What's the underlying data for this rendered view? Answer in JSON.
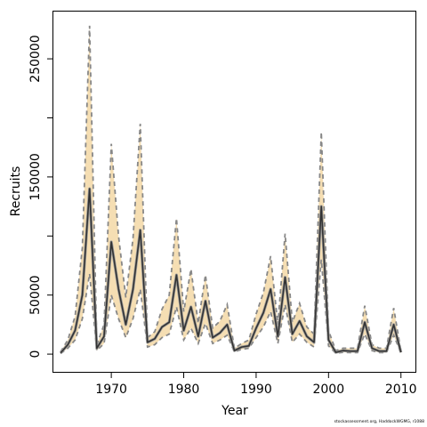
{
  "chart_data": {
    "type": "line",
    "title": "",
    "xlabel": "Year",
    "ylabel": "Recruits",
    "xlim": [
      1962,
      2012
    ],
    "ylim": [
      -15000,
      290000
    ],
    "x_ticks": [
      1970,
      1980,
      1990,
      2000,
      2010
    ],
    "y_ticks": [
      0,
      50000,
      100000,
      150000,
      200000,
      250000
    ],
    "y_tick_labels": [
      "0",
      "50000",
      "",
      "150000",
      "",
      "250000"
    ],
    "band_color": "#f5deb3",
    "line_color": "#333333",
    "bound_color": "#888888",
    "grid": false,
    "x": [
      1963,
      1964,
      1965,
      1966,
      1967,
      1968,
      1969,
      1970,
      1971,
      1972,
      1973,
      1974,
      1975,
      1976,
      1977,
      1978,
      1979,
      1980,
      1981,
      1982,
      1983,
      1984,
      1985,
      1986,
      1987,
      1988,
      1989,
      1990,
      1991,
      1992,
      1993,
      1994,
      1995,
      1996,
      1997,
      1998,
      1999,
      2000,
      2001,
      2002,
      2003,
      2004,
      2005,
      2006,
      2007,
      2008,
      2009,
      2010
    ],
    "series": [
      {
        "role": "estimate",
        "values": [
          1000,
          8000,
          20000,
          50000,
          140000,
          5000,
          15000,
          95000,
          55000,
          25000,
          55000,
          105000,
          10000,
          13000,
          23000,
          27000,
          67000,
          20000,
          40000,
          15000,
          45000,
          14000,
          18000,
          25000,
          3000,
          6000,
          7000,
          22000,
          35000,
          55000,
          15000,
          65000,
          17000,
          28000,
          15000,
          10000,
          125000,
          12000,
          1500,
          3000,
          2500,
          2500,
          27000,
          5000,
          2500,
          2500,
          25000,
          1500
        ]
      },
      {
        "role": "upper",
        "values": [
          2000,
          12000,
          32000,
          90000,
          278000,
          8000,
          25000,
          178000,
          100000,
          48000,
          98000,
          195000,
          14000,
          19000,
          38000,
          50000,
          115000,
          36000,
          72000,
          26000,
          67000,
          22000,
          28000,
          42000,
          5000,
          9000,
          12000,
          34000,
          52000,
          83000,
          25000,
          102000,
          27000,
          43000,
          23000,
          17000,
          188000,
          20000,
          3000,
          5000,
          5000,
          5000,
          41000,
          8000,
          5000,
          5000,
          39000,
          2500
        ]
      },
      {
        "role": "lower",
        "values": [
          500,
          5000,
          12000,
          30000,
          68000,
          3000,
          9000,
          50000,
          30000,
          14000,
          30000,
          55000,
          6000,
          8000,
          14000,
          17000,
          40000,
          12000,
          22000,
          9000,
          26000,
          9000,
          12000,
          16000,
          2000,
          4000,
          5000,
          14000,
          23000,
          36000,
          9000,
          42000,
          10000,
          17000,
          10000,
          6000,
          80000,
          7000,
          800,
          1500,
          1300,
          1300,
          17000,
          3000,
          1300,
          1300,
          16000,
          800
        ]
      }
    ]
  },
  "footer": {
    "credit": "stockassessment.org, HaddockWGMG, r1088"
  }
}
